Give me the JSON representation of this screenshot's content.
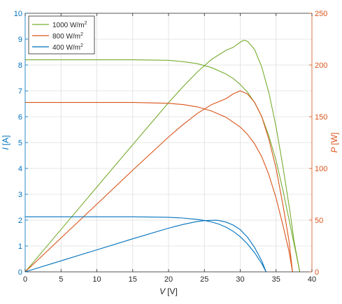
{
  "chart_data": {
    "type": "line",
    "xlabel": {
      "var": "V",
      "unit": "[V]"
    },
    "ylabel_left": {
      "var": "I",
      "unit": "[A]"
    },
    "ylabel_right": {
      "var": "P",
      "unit": "[W]"
    },
    "xlim": [
      0,
      40
    ],
    "ylim_left": [
      0,
      10
    ],
    "ylim_right": [
      0,
      250
    ],
    "x_ticks": [
      0,
      5,
      10,
      15,
      20,
      25,
      30,
      35,
      40
    ],
    "y_ticks_left": [
      0,
      1,
      2,
      3,
      4,
      5,
      6,
      7,
      8,
      9,
      10
    ],
    "y_ticks_right": [
      0,
      50,
      100,
      150,
      200,
      250
    ],
    "grid": true,
    "legend_position": "top-left",
    "colors": {
      "left_axis": "#0072bd",
      "right_axis": "#d95319"
    },
    "series": [
      {
        "name": "1000 W/m",
        "sup": "2",
        "color": "#77ac30",
        "voc": 38.3,
        "iv": [
          [
            0,
            8.2
          ],
          [
            5,
            8.2
          ],
          [
            10,
            8.2
          ],
          [
            15,
            8.2
          ],
          [
            20,
            8.18
          ],
          [
            22,
            8.13
          ],
          [
            24,
            8.05
          ],
          [
            26,
            7.9
          ],
          [
            28,
            7.65
          ],
          [
            29,
            7.48
          ],
          [
            30,
            7.25
          ],
          [
            31,
            6.95
          ],
          [
            32,
            6.55
          ],
          [
            33,
            6.0
          ],
          [
            34,
            5.25
          ],
          [
            35,
            4.3
          ],
          [
            36,
            3.1
          ],
          [
            37,
            1.75
          ],
          [
            37.8,
            0.7
          ],
          [
            38.3,
            0
          ]
        ],
        "pv": [
          [
            0,
            0
          ],
          [
            5,
            41
          ],
          [
            10,
            82
          ],
          [
            15,
            123
          ],
          [
            20,
            163.6
          ],
          [
            22,
            178.9
          ],
          [
            24,
            193.2
          ],
          [
            26,
            205.4
          ],
          [
            28,
            214.2
          ],
          [
            29,
            217
          ],
          [
            30,
            222
          ],
          [
            30.5,
            224
          ],
          [
            31,
            223
          ],
          [
            32,
            215
          ],
          [
            33,
            198
          ],
          [
            34,
            173
          ],
          [
            35,
            140
          ],
          [
            36,
            100
          ],
          [
            37,
            55
          ],
          [
            37.5,
            30
          ],
          [
            38.3,
            0
          ]
        ]
      },
      {
        "name": "800 W/m",
        "sup": "2",
        "color": "#d95319",
        "voc": 37.3,
        "iv": [
          [
            0,
            6.55
          ],
          [
            5,
            6.55
          ],
          [
            10,
            6.55
          ],
          [
            15,
            6.55
          ],
          [
            20,
            6.52
          ],
          [
            22,
            6.47
          ],
          [
            24,
            6.38
          ],
          [
            26,
            6.22
          ],
          [
            28,
            5.98
          ],
          [
            30,
            5.6
          ],
          [
            31,
            5.32
          ],
          [
            32,
            4.95
          ],
          [
            33,
            4.45
          ],
          [
            34,
            3.75
          ],
          [
            35,
            2.85
          ],
          [
            36,
            1.75
          ],
          [
            36.8,
            0.8
          ],
          [
            37.3,
            0
          ]
        ],
        "pv": [
          [
            0,
            0
          ],
          [
            5,
            32.8
          ],
          [
            10,
            65.5
          ],
          [
            15,
            98.3
          ],
          [
            20,
            130.4
          ],
          [
            22,
            142.3
          ],
          [
            24,
            153.1
          ],
          [
            26,
            161.7
          ],
          [
            28,
            167.4
          ],
          [
            29,
            172
          ],
          [
            30,
            175
          ],
          [
            31,
            172
          ],
          [
            32,
            164
          ],
          [
            33,
            150
          ],
          [
            34,
            128
          ],
          [
            35,
            100
          ],
          [
            36,
            63
          ],
          [
            36.8,
            30
          ],
          [
            37.3,
            0
          ]
        ]
      },
      {
        "name": "400 W/m",
        "sup": "2",
        "color": "#0072bd",
        "voc": 33.6,
        "iv": [
          [
            0,
            2.13
          ],
          [
            5,
            2.13
          ],
          [
            10,
            2.13
          ],
          [
            15,
            2.13
          ],
          [
            20,
            2.11
          ],
          [
            22,
            2.08
          ],
          [
            24,
            2.03
          ],
          [
            25,
            1.99
          ],
          [
            26,
            1.93
          ],
          [
            27,
            1.85
          ],
          [
            28,
            1.73
          ],
          [
            29,
            1.57
          ],
          [
            30,
            1.36
          ],
          [
            31,
            1.08
          ],
          [
            32,
            0.74
          ],
          [
            33,
            0.32
          ],
          [
            33.6,
            0
          ]
        ],
        "pv": [
          [
            0,
            0
          ],
          [
            5,
            10.65
          ],
          [
            10,
            21.3
          ],
          [
            15,
            31.95
          ],
          [
            20,
            42.2
          ],
          [
            22,
            45.8
          ],
          [
            24,
            48.7
          ],
          [
            25,
            49.5
          ],
          [
            26,
            49.8
          ],
          [
            26.5,
            49.9
          ],
          [
            27,
            49.6
          ],
          [
            28,
            48.2
          ],
          [
            29,
            45.3
          ],
          [
            30,
            40.8
          ],
          [
            31,
            33.5
          ],
          [
            32,
            23.6
          ],
          [
            33,
            10.6
          ],
          [
            33.6,
            0
          ]
        ]
      }
    ]
  }
}
